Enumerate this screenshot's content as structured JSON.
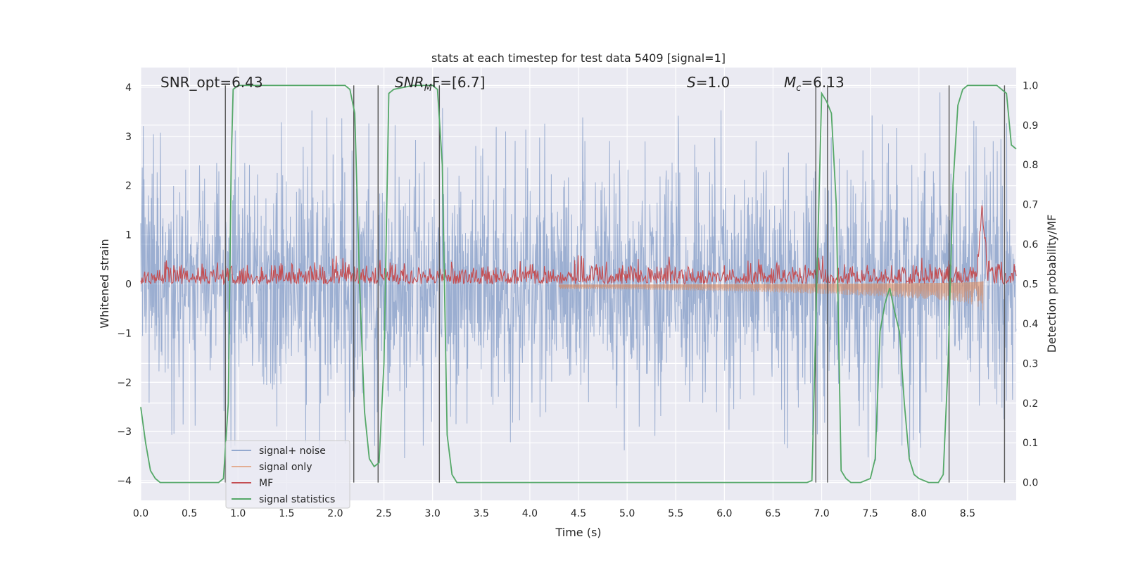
{
  "chart_data": {
    "type": "line",
    "title": "stats at each timestep for test data 5409 [signal=1]",
    "xlabel": "Time (s)",
    "ylabel_left": "Whitened strain",
    "ylabel_right": "Detection probability/MF",
    "xlim": [
      0.0,
      9.0
    ],
    "ylim_left": [
      -4.4,
      4.4
    ],
    "ylim_right": [
      -0.045,
      1.045
    ],
    "x_ticks": [
      "0.0",
      "0.5",
      "1.0",
      "1.5",
      "2.0",
      "2.5",
      "3.0",
      "3.5",
      "4.0",
      "4.5",
      "5.0",
      "5.5",
      "6.0",
      "6.5",
      "7.0",
      "7.5",
      "8.0",
      "8.5"
    ],
    "y_ticks_left": [
      "−4",
      "−3",
      "−2",
      "−1",
      "0",
      "1",
      "2",
      "3",
      "4"
    ],
    "y_ticks_right": [
      "0.0",
      "0.1",
      "0.2",
      "0.3",
      "0.4",
      "0.5",
      "0.6",
      "0.7",
      "0.8",
      "0.9",
      "1.0"
    ],
    "grid": true,
    "legend_placement": "lower-left",
    "annotations": [
      {
        "text": "SNR_opt=6.43",
        "x": 0.2
      },
      {
        "text_main": "SNR",
        "text_sub": "M",
        "text_rest": "F=[6.7]",
        "x": 2.6
      },
      {
        "text_main": "S",
        "text_rest": "=1.0",
        "x": 5.6
      },
      {
        "text_main": "M",
        "text_sub": "c",
        "text_rest": "=6.13",
        "x": 6.6
      }
    ],
    "series": [
      {
        "name": "signal+ noise",
        "color": "#4c72b0",
        "style": "dense noise, amplitude about ±2, spikes to ±3.5 (left axis)"
      },
      {
        "name": "signal only",
        "color": "#dd8452",
        "style": "chirp growing from ~4.3 s to peak ~8.65 s (left axis)"
      },
      {
        "name": "MF",
        "color": "#c44e52",
        "style": "noisy band 0.5–0.55 with peak ~0.7 at 8.65 s (right axis)"
      },
      {
        "name": "signal statistics",
        "color": "#55a868",
        "x": [
          0.0,
          0.05,
          0.1,
          0.15,
          0.2,
          0.4,
          0.6,
          0.8,
          0.85,
          0.9,
          0.93,
          0.95,
          1.0,
          1.5,
          2.0,
          2.1,
          2.15,
          2.2,
          2.25,
          2.3,
          2.35,
          2.4,
          2.45,
          2.5,
          2.55,
          2.6,
          2.8,
          3.0,
          3.05,
          3.1,
          3.15,
          3.2,
          3.25,
          3.5,
          4.0,
          5.0,
          6.0,
          6.5,
          6.85,
          6.9,
          6.95,
          7.0,
          7.05,
          7.1,
          7.15,
          7.2,
          7.25,
          7.3,
          7.4,
          7.5,
          7.55,
          7.6,
          7.65,
          7.7,
          7.75,
          7.8,
          7.85,
          7.9,
          7.95,
          8.0,
          8.1,
          8.2,
          8.25,
          8.3,
          8.35,
          8.4,
          8.45,
          8.5,
          8.6,
          8.8,
          8.85,
          8.9,
          8.95,
          9.0
        ],
        "values": [
          0.19,
          0.1,
          0.03,
          0.01,
          0.0,
          0.0,
          0.0,
          0.0,
          0.01,
          0.2,
          0.8,
          0.99,
          1.0,
          1.0,
          1.0,
          1.0,
          0.99,
          0.93,
          0.5,
          0.18,
          0.06,
          0.04,
          0.05,
          0.3,
          0.98,
          0.99,
          1.0,
          1.0,
          0.99,
          0.8,
          0.12,
          0.02,
          0.0,
          0.0,
          0.0,
          0.0,
          0.0,
          0.0,
          0.0,
          0.005,
          0.5,
          0.98,
          0.96,
          0.93,
          0.7,
          0.03,
          0.01,
          0.0,
          0.0,
          0.01,
          0.06,
          0.38,
          0.45,
          0.49,
          0.43,
          0.38,
          0.2,
          0.06,
          0.02,
          0.01,
          0.0,
          0.0,
          0.02,
          0.3,
          0.75,
          0.95,
          0.99,
          1.0,
          1.0,
          1.0,
          0.99,
          0.98,
          0.85,
          0.84
        ]
      }
    ],
    "event_lines_x": [
      0.87,
      2.19,
      2.44,
      3.07,
      6.94,
      7.06,
      8.31,
      8.88
    ],
    "legend": [
      {
        "label": "signal+ noise",
        "color": "#4c72b0",
        "alpha": 0.55
      },
      {
        "label": "signal only",
        "color": "#dd8452",
        "alpha": 0.6
      },
      {
        "label": "MF",
        "color": "#c44e52",
        "alpha": 1
      },
      {
        "label": "signal statistics",
        "color": "#55a868",
        "alpha": 1
      }
    ]
  }
}
